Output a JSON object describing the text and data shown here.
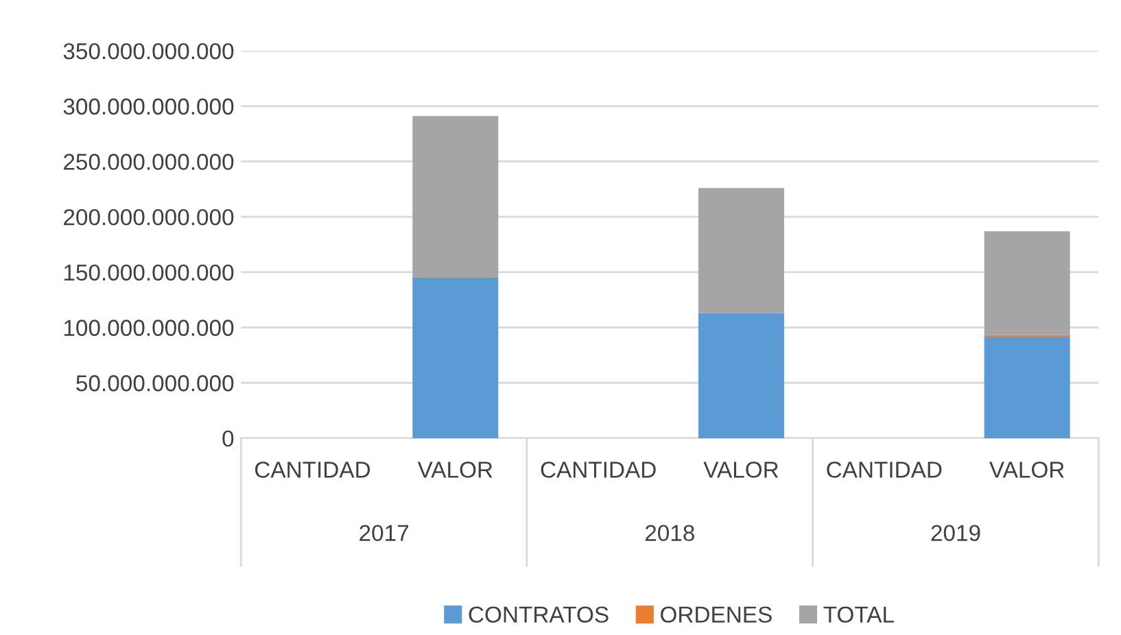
{
  "chart_data": {
    "type": "bar",
    "stacked": true,
    "categories": [
      "CANTIDAD",
      "VALOR",
      "CANTIDAD",
      "VALOR",
      "CANTIDAD",
      "VALOR"
    ],
    "series": [
      {
        "name": "CONTRATOS",
        "color": "#5b9bd5",
        "values": [
          0,
          145000000000,
          0,
          113000000000,
          0,
          91000000000
        ]
      },
      {
        "name": "ORDENES",
        "color": "#ed7d31",
        "values": [
          0,
          0,
          0,
          0,
          0,
          2000000000
        ]
      },
      {
        "name": "TOTAL",
        "color": "#a5a5a5",
        "values": [
          0,
          146000000000,
          0,
          113000000000,
          0,
          94000000000
        ]
      }
    ],
    "annotations": [
      "2017",
      "2018",
      "2019"
    ],
    "ylim": [
      0,
      350000000000
    ],
    "yticks": [
      0,
      {
        "value": 50000000000,
        "label": "50.000.000.000"
      },
      {
        "value": 100000000000,
        "label": "100.000.000.000"
      },
      {
        "value": 150000000000,
        "label": "150.000.000.000"
      },
      {
        "value": 200000000000,
        "label": "200.000.000.000"
      },
      {
        "value": 250000000000,
        "label": "250.000.000.000"
      },
      {
        "value": 300000000000,
        "label": "300.000.000.000"
      },
      {
        "value": 350000000000,
        "label": "350.000.000.000"
      }
    ],
    "grid": "y",
    "legend": "bottom"
  }
}
